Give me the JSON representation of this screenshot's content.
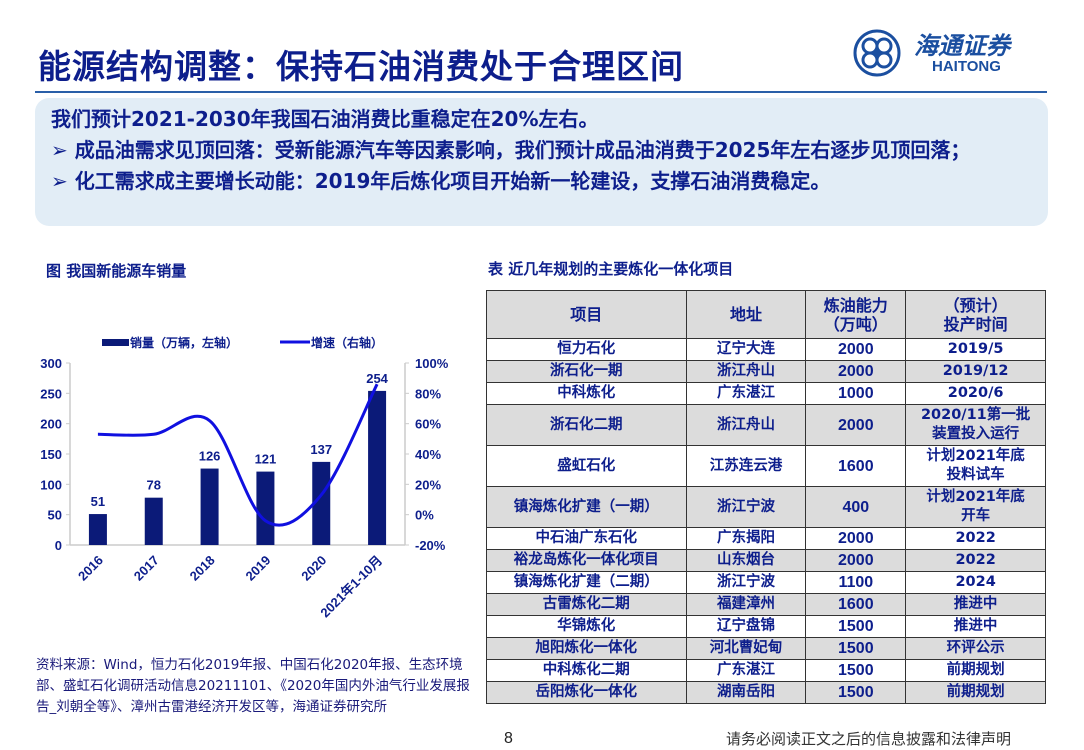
{
  "title": "能源结构调整：保持石油消费处于合理区间",
  "logo": {
    "cn": "海通证券",
    "en": "HAITONG",
    "color": "#1b4fa0"
  },
  "summary": {
    "lead": "我们预计2021-2030年我国石油消费比重稳定在20%左右。",
    "bullets": [
      "➢  成品油需求见顶回落：受新能源汽车等因素影响，我们预计成品油消费于2025年左右逐步见顶回落；",
      "➢  化工需求成主要增长动能：2019年后炼化项目开始新一轮建设，支撑石油消费稳定。"
    ]
  },
  "chart_caption": "图 我国新能源车销量",
  "chart_data": {
    "type": "bar+line",
    "categories": [
      "2016",
      "2017",
      "2018",
      "2019",
      "2020",
      "2021年1-10月"
    ],
    "series": [
      {
        "name": "销量（万辆，左轴）",
        "type": "bar",
        "axis": "left",
        "values": [
          51,
          78,
          126,
          121,
          137,
          254
        ],
        "color": "#0b1a78"
      },
      {
        "name": "增速（右轴）",
        "type": "line",
        "axis": "right",
        "values": [
          53,
          53,
          62,
          -4,
          13,
          86
        ],
        "color": "#1010e0"
      }
    ],
    "left_axis": {
      "range": [
        0,
        300
      ],
      "ticks": [
        "0",
        "50",
        "100",
        "150",
        "200",
        "250",
        "300"
      ]
    },
    "right_axis": {
      "range": [
        -20,
        100
      ],
      "ticks": [
        "-20%",
        "0%",
        "20%",
        "40%",
        "60%",
        "80%",
        "100%"
      ]
    },
    "legend_position": "top",
    "grid": false
  },
  "source": "资料来源：Wind，恒力石化2019年报、中国石化2020年报、生态环境部、盛虹石化调研活动信息20211101、《2020年国内外油气行业发展报告_刘朝全等》、漳州古雷港经济开发区等，海通证券研究所",
  "table_caption": "表 近几年规划的主要炼化一体化项目",
  "table": {
    "headers": [
      "项目",
      "地址",
      "炼油能力（万吨）",
      "（预计）投产时间"
    ],
    "rows": [
      [
        "恒力石化",
        "辽宁大连",
        "2000",
        "2019/5"
      ],
      [
        "浙石化一期",
        "浙江舟山",
        "2000",
        "2019/12"
      ],
      [
        "中科炼化",
        "广东湛江",
        "1000",
        "2020/6"
      ],
      [
        "浙石化二期",
        "浙江舟山",
        "2000",
        "2020/11第一批装置投入运行"
      ],
      [
        "盛虹石化",
        "江苏连云港",
        "1600",
        "计划2021年底投料试车"
      ],
      [
        "镇海炼化扩建（一期）",
        "浙江宁波",
        "400",
        "计划2021年底开车"
      ],
      [
        "中石油广东石化",
        "广东揭阳",
        "2000",
        "2022"
      ],
      [
        "裕龙岛炼化一体化项目",
        "山东烟台",
        "2000",
        "2022"
      ],
      [
        "镇海炼化扩建（二期）",
        "浙江宁波",
        "1100",
        "2024"
      ],
      [
        "古雷炼化二期",
        "福建漳州",
        "1600",
        "推进中"
      ],
      [
        "华锦炼化",
        "辽宁盘锦",
        "1500",
        "推进中"
      ],
      [
        "旭阳炼化一体化",
        "河北曹妃甸",
        "1500",
        "环评公示"
      ],
      [
        "中科炼化二期",
        "广东湛江",
        "1500",
        "前期规划"
      ],
      [
        "岳阳炼化一体化",
        "湖南岳阳",
        "1500",
        "前期规划"
      ]
    ]
  },
  "page_number": "8",
  "disclaimer": "请务必阅读正文之后的信息披露和法律声明"
}
